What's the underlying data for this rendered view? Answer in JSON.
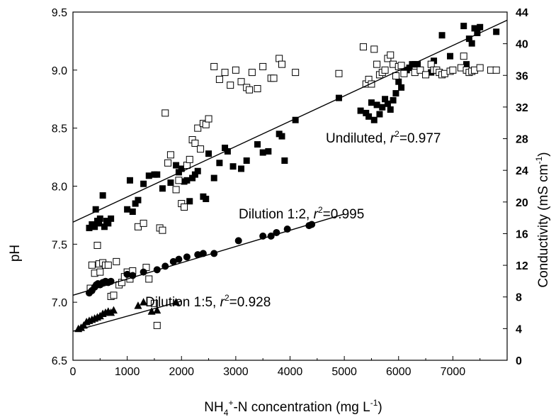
{
  "chart_data": {
    "type": "scatter",
    "title": "",
    "xlabel": {
      "pre": "NH",
      "sub1": "4",
      "sup1": "+",
      "mid": "-N concentration (mg L",
      "sup2": "-1",
      "post": ")"
    },
    "ylabel_left": "pH",
    "ylabel_right": {
      "pre": "Conductivity (mS cm",
      "sup": "-1",
      "post": ")"
    },
    "xlim": [
      0,
      8000
    ],
    "ylim_left": [
      6.5,
      9.5
    ],
    "ylim_right": [
      0,
      44
    ],
    "x_ticks": [
      "0",
      "1000",
      "2000",
      "3000",
      "4000",
      "5000",
      "6000",
      "7000"
    ],
    "y_left_ticks": [
      "6.5",
      "7.0",
      "7.5",
      "8.0",
      "8.5",
      "9.0",
      "9.5"
    ],
    "y_right_ticks": [
      "0",
      "4",
      "8",
      "12",
      "16",
      "20",
      "24",
      "28",
      "32",
      "36",
      "40",
      "44"
    ],
    "annotations": [
      {
        "pre": "Undiluted, ",
        "r": "r",
        "sup": "2",
        "post": "=0.977"
      },
      {
        "pre": "Dilution 1:2, ",
        "r": "r",
        "sup": "2",
        "post": "=0.995"
      },
      {
        "pre": "Dilution 1:5, ",
        "r": "r",
        "sup": "2",
        "post": "=0.928"
      }
    ],
    "series": [
      {
        "marker": "filled-square",
        "axis": "left",
        "points": [
          [
            300,
            7.64
          ],
          [
            350,
            7.67
          ],
          [
            400,
            7.65
          ],
          [
            420,
            7.8
          ],
          [
            450,
            7.7
          ],
          [
            480,
            7.68
          ],
          [
            500,
            7.72
          ],
          [
            550,
            7.92
          ],
          [
            580,
            7.65
          ],
          [
            620,
            7.7
          ],
          [
            650,
            7.68
          ],
          [
            700,
            7.72
          ],
          [
            1000,
            7.8
          ],
          [
            1050,
            8.05
          ],
          [
            1100,
            7.78
          ],
          [
            1150,
            7.85
          ],
          [
            1200,
            7.88
          ],
          [
            1300,
            8.02
          ],
          [
            1400,
            8.09
          ],
          [
            1500,
            8.1
          ],
          [
            1550,
            8.1
          ],
          [
            1650,
            7.98
          ],
          [
            1800,
            8.03
          ],
          [
            1900,
            8.18
          ],
          [
            1950,
            8.12
          ],
          [
            2000,
            8.15
          ],
          [
            2050,
            8.04
          ],
          [
            2100,
            8.05
          ],
          [
            2150,
            7.87
          ],
          [
            2200,
            8.07
          ],
          [
            2250,
            8.1
          ],
          [
            2300,
            8.13
          ],
          [
            2400,
            7.91
          ],
          [
            2450,
            7.89
          ],
          [
            2500,
            8.28
          ],
          [
            2600,
            8.07
          ],
          [
            2700,
            8.2
          ],
          [
            2800,
            8.33
          ],
          [
            2850,
            8.3
          ],
          [
            2950,
            8.17
          ],
          [
            3100,
            8.15
          ],
          [
            3200,
            8.22
          ],
          [
            3400,
            8.36
          ],
          [
            3500,
            8.29
          ],
          [
            3600,
            8.3
          ],
          [
            3800,
            8.45
          ],
          [
            3850,
            8.43
          ],
          [
            3900,
            8.22
          ],
          [
            4100,
            8.57
          ],
          [
            4900,
            8.76
          ],
          [
            5300,
            8.65
          ],
          [
            5400,
            8.63
          ],
          [
            5450,
            8.6
          ],
          [
            5500,
            8.72
          ],
          [
            5550,
            8.57
          ],
          [
            5600,
            8.7
          ],
          [
            5650,
            8.62
          ],
          [
            5700,
            8.68
          ],
          [
            5750,
            8.75
          ],
          [
            5800,
            8.71
          ],
          [
            5850,
            8.66
          ],
          [
            5900,
            8.74
          ],
          [
            5950,
            8.8
          ],
          [
            6000,
            8.9
          ],
          [
            6050,
            8.85
          ],
          [
            6100,
            8.98
          ],
          [
            6150,
            9.0
          ],
          [
            6200,
            9.02
          ],
          [
            6250,
            9.05
          ],
          [
            6300,
            9.05
          ],
          [
            6350,
            9.05
          ],
          [
            6600,
            8.98
          ],
          [
            6650,
            9.08
          ],
          [
            6800,
            9.3
          ],
          [
            6950,
            9.12
          ],
          [
            7200,
            9.38
          ],
          [
            7250,
            9.05
          ],
          [
            7300,
            9.27
          ],
          [
            7350,
            9.23
          ],
          [
            7400,
            9.36
          ],
          [
            7450,
            9.32
          ],
          [
            7500,
            9.37
          ],
          [
            7800,
            9.33
          ]
        ]
      },
      {
        "marker": "open-square",
        "axis": "left",
        "points": [
          [
            320,
            7.12
          ],
          [
            350,
            7.32
          ],
          [
            400,
            7.25
          ],
          [
            450,
            7.49
          ],
          [
            480,
            7.33
          ],
          [
            500,
            7.26
          ],
          [
            550,
            7.34
          ],
          [
            600,
            7.32
          ],
          [
            650,
            7.32
          ],
          [
            700,
            7.05
          ],
          [
            750,
            7.06
          ],
          [
            800,
            7.35
          ],
          [
            850,
            7.15
          ],
          [
            900,
            7.17
          ],
          [
            950,
            7.22
          ],
          [
            1000,
            7.26
          ],
          [
            1050,
            7.2
          ],
          [
            1100,
            7.27
          ],
          [
            1200,
            7.65
          ],
          [
            1300,
            7.68
          ],
          [
            1350,
            7.3
          ],
          [
            1400,
            7.2
          ],
          [
            1500,
            6.99
          ],
          [
            1550,
            6.8
          ],
          [
            1600,
            7.64
          ],
          [
            1650,
            7.62
          ],
          [
            1700,
            8.63
          ],
          [
            1750,
            8.2
          ],
          [
            1800,
            8.27
          ],
          [
            1900,
            7.97
          ],
          [
            1950,
            8.05
          ],
          [
            2000,
            7.85
          ],
          [
            2050,
            7.82
          ],
          [
            2100,
            8.18
          ],
          [
            2150,
            8.23
          ],
          [
            2200,
            8.4
          ],
          [
            2250,
            8.37
          ],
          [
            2300,
            8.5
          ],
          [
            2350,
            8.32
          ],
          [
            2400,
            8.54
          ],
          [
            2450,
            8.53
          ],
          [
            2500,
            8.58
          ],
          [
            2600,
            9.03
          ],
          [
            2700,
            8.92
          ],
          [
            2800,
            8.98
          ],
          [
            2900,
            8.87
          ],
          [
            3000,
            9.0
          ],
          [
            3100,
            8.9
          ],
          [
            3200,
            8.85
          ],
          [
            3250,
            8.83
          ],
          [
            3300,
            8.98
          ],
          [
            3400,
            8.84
          ],
          [
            3500,
            9.03
          ],
          [
            3650,
            8.93
          ],
          [
            3700,
            8.93
          ],
          [
            3800,
            9.1
          ],
          [
            3850,
            9.05
          ],
          [
            4100,
            8.98
          ],
          [
            4900,
            8.97
          ],
          [
            5350,
            9.2
          ],
          [
            5400,
            8.88
          ],
          [
            5450,
            8.92
          ],
          [
            5500,
            8.88
          ],
          [
            5550,
            9.18
          ],
          [
            5600,
            9.05
          ],
          [
            5650,
            8.96
          ],
          [
            5700,
            8.98
          ],
          [
            5750,
            9.0
          ],
          [
            5800,
            9.1
          ],
          [
            5850,
            9.13
          ],
          [
            5900,
            9.05
          ],
          [
            5950,
            8.95
          ],
          [
            6000,
            9.03
          ],
          [
            6050,
            9.04
          ],
          [
            6100,
            8.97
          ],
          [
            6300,
            8.98
          ],
          [
            6400,
            9.0
          ],
          [
            6500,
            8.96
          ],
          [
            6600,
            9.05
          ],
          [
            6650,
            9.0
          ],
          [
            6700,
            9.0
          ],
          [
            6750,
            8.98
          ],
          [
            6800,
            8.96
          ],
          [
            6850,
            8.97
          ],
          [
            6950,
            8.99
          ],
          [
            7000,
            9.0
          ],
          [
            7150,
            9.02
          ],
          [
            7200,
            9.12
          ],
          [
            7250,
            9.0
          ],
          [
            7300,
            8.98
          ],
          [
            7350,
            8.99
          ],
          [
            7400,
            9.0
          ],
          [
            7500,
            9.02
          ],
          [
            7700,
            9.0
          ],
          [
            7800,
            9.0
          ]
        ]
      },
      {
        "marker": "filled-circle",
        "axis": "left",
        "points": [
          [
            300,
            7.08
          ],
          [
            350,
            7.1
          ],
          [
            400,
            7.13
          ],
          [
            430,
            7.15
          ],
          [
            460,
            7.16
          ],
          [
            500,
            7.15
          ],
          [
            550,
            7.17
          ],
          [
            600,
            7.18
          ],
          [
            650,
            7.17
          ],
          [
            700,
            7.18
          ],
          [
            1000,
            7.24
          ],
          [
            1100,
            7.23
          ],
          [
            1300,
            7.26
          ],
          [
            1550,
            7.28
          ],
          [
            1700,
            7.31
          ],
          [
            1850,
            7.35
          ],
          [
            1950,
            7.37
          ],
          [
            2100,
            7.39
          ],
          [
            2300,
            7.41
          ],
          [
            2400,
            7.42
          ],
          [
            2600,
            7.42
          ],
          [
            3050,
            7.53
          ],
          [
            3500,
            7.57
          ],
          [
            3650,
            7.57
          ],
          [
            3750,
            7.6
          ],
          [
            3950,
            7.63
          ],
          [
            4350,
            7.66
          ],
          [
            4400,
            7.67
          ]
        ]
      },
      {
        "marker": "filled-triangle",
        "axis": "left",
        "points": [
          [
            100,
            6.77
          ],
          [
            150,
            6.78
          ],
          [
            200,
            6.8
          ],
          [
            250,
            6.83
          ],
          [
            300,
            6.84
          ],
          [
            350,
            6.85
          ],
          [
            400,
            6.86
          ],
          [
            450,
            6.87
          ],
          [
            500,
            6.88
          ],
          [
            550,
            6.9
          ],
          [
            600,
            6.91
          ],
          [
            650,
            6.92
          ],
          [
            700,
            6.91
          ],
          [
            750,
            6.93
          ],
          [
            1200,
            6.97
          ],
          [
            1300,
            7.0
          ],
          [
            1450,
            6.92
          ],
          [
            1550,
            6.93
          ],
          [
            1900,
            7.0
          ]
        ]
      }
    ],
    "fit_lines": [
      {
        "from": [
          0,
          7.69
        ],
        "to": [
          8000,
          9.43
        ]
      },
      {
        "from": [
          0,
          7.06
        ],
        "to": [
          5000,
          7.76
        ]
      },
      {
        "from": [
          0,
          6.75
        ],
        "to": [
          2000,
          7.01
        ]
      }
    ]
  }
}
